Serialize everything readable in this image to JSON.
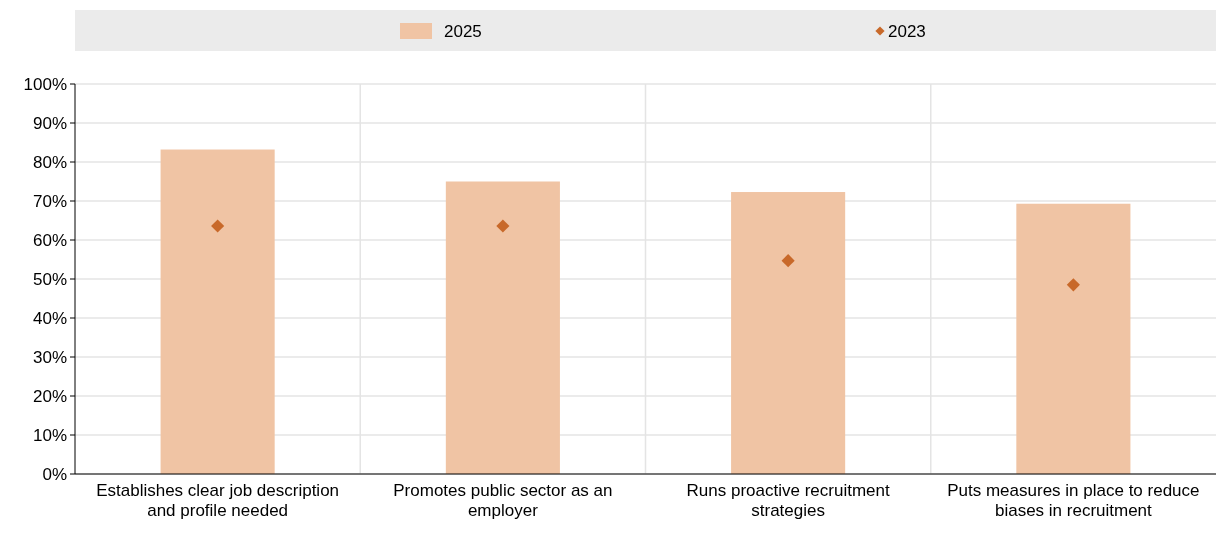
{
  "chart_data": {
    "type": "bar",
    "categories": [
      "Establishes clear job description and profile needed",
      "Promotes public sector as an employer",
      "Runs proactive recruitment strategies",
      "Puts measures in place to reduce biases in recruitment"
    ],
    "series": [
      {
        "name": "2025",
        "color": "#f0c4a4",
        "values": [
          83.2,
          75.0,
          72.3,
          69.3
        ]
      },
      {
        "name": "2023",
        "type": "scatter",
        "marker": "diamond",
        "color": "#c8692a",
        "x": [
          "Establishes clear job description and profile needed",
          "Promotes public sector as an employer",
          "Runs proactive recruitment strategies",
          "Puts measures in place to reduce biases in recruitment"
        ],
        "values": [
          63.6,
          63.6,
          54.7,
          48.5
        ]
      }
    ],
    "ylim": [
      0,
      100
    ],
    "yticks": [
      {
        "value": 0,
        "label": "0%"
      },
      {
        "value": 10,
        "label": "10%"
      },
      {
        "value": 20,
        "label": "20%"
      },
      {
        "value": 30,
        "label": "30%"
      },
      {
        "value": 40,
        "label": "40%"
      },
      {
        "value": 50,
        "label": "50%"
      },
      {
        "value": 60,
        "label": "60%"
      },
      {
        "value": 70,
        "label": "70%"
      },
      {
        "value": 80,
        "label": "80%"
      },
      {
        "value": 90,
        "label": "90%"
      },
      {
        "value": 100,
        "label": "100%"
      }
    ],
    "grid": true,
    "legend": "top"
  }
}
